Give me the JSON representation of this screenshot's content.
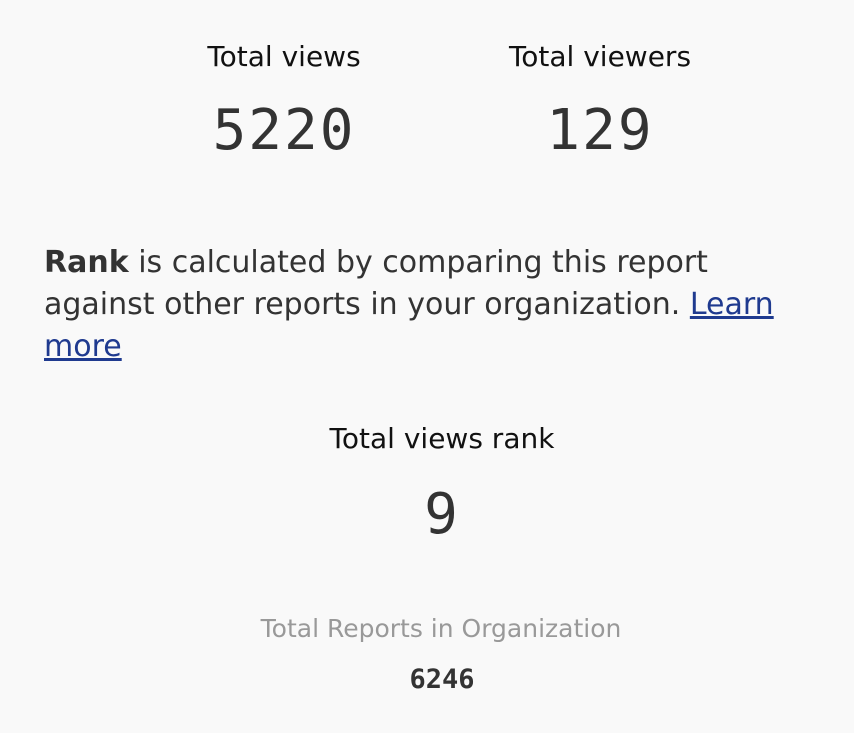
{
  "cards": [
    {
      "label": "Total views",
      "value": 5220
    },
    {
      "label": "Total viewers",
      "value": 129
    }
  ],
  "note": {
    "bold": "Rank",
    "text": "is calculated by comparing this report against other reports in your organization.",
    "link": "Learn more"
  },
  "rank": {
    "label": "Total views rank",
    "value": 9
  },
  "total": {
    "label": "Total Reports in Organization",
    "value": 6246
  }
}
